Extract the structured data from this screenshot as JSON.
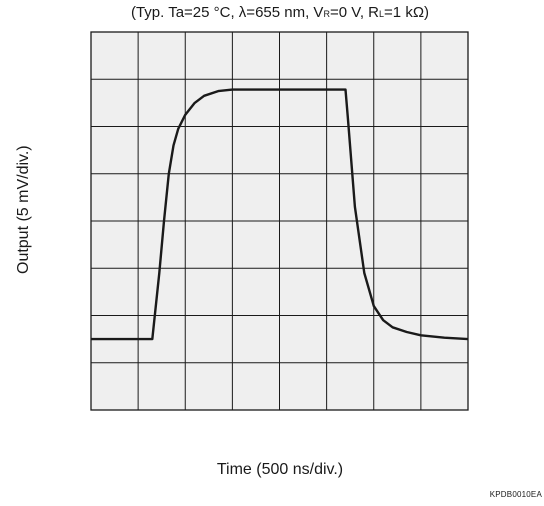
{
  "conditions": {
    "prefix": "(Typ. Ta=25 °C, λ=655 nm, V",
    "vr_sub": "R",
    "middle": "=0 V, R",
    "rl_sub": "L",
    "suffix": "=1 kΩ)"
  },
  "figure_code": "KPDB0010EA",
  "chart_data": {
    "type": "line",
    "title": "(Typ. Ta=25 °C, λ=655 nm, VR=0 V, RL=1 kΩ)",
    "xlabel": "Time (500 ns/div.)",
    "ylabel": "Output (5 mV/div.)",
    "x_divisions": 8,
    "y_divisions": 8,
    "xlim": [
      0,
      8
    ],
    "ylim": [
      0,
      8
    ],
    "grid": true,
    "series": [
      {
        "x": [
          0,
          1.3,
          1.45,
          1.55,
          1.65,
          1.75,
          1.85,
          2.0,
          2.2,
          2.4,
          2.7,
          3.0,
          4.5,
          5.4,
          5.45,
          5.6,
          5.8,
          6.0,
          6.2,
          6.4,
          6.7,
          7.0,
          7.5,
          8.0
        ],
        "y": [
          1.5,
          1.5,
          2.9,
          4.0,
          5.0,
          5.6,
          5.95,
          6.25,
          6.5,
          6.65,
          6.75,
          6.78,
          6.78,
          6.78,
          6.2,
          4.3,
          2.9,
          2.2,
          1.9,
          1.75,
          1.65,
          1.58,
          1.53,
          1.5
        ]
      }
    ]
  }
}
